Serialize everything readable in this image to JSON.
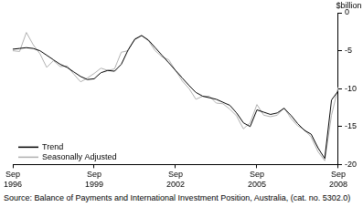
{
  "chart_data": {
    "type": "line",
    "y_label": "$billion",
    "source": "Source: Balance of Payments and International Investment Position, Australia, (cat. no. 5302.0)",
    "categories": [
      "Sep 1996",
      null,
      null,
      null,
      null,
      null,
      null,
      null,
      null,
      null,
      null,
      null,
      "Sep 1999",
      null,
      null,
      null,
      null,
      null,
      null,
      null,
      null,
      null,
      null,
      null,
      "Sep 2002",
      null,
      null,
      null,
      null,
      null,
      null,
      null,
      null,
      null,
      null,
      null,
      "Sep 2005",
      null,
      null,
      null,
      null,
      null,
      null,
      null,
      null,
      null,
      null,
      null,
      "Sep 2008"
    ],
    "series": [
      {
        "name": "Trend",
        "color": "#000000",
        "line_style": "solid",
        "values": [
          -4.8,
          -4.7,
          -4.6,
          -4.7,
          -5.0,
          -5.6,
          -6.2,
          -6.8,
          -7.2,
          -7.8,
          -8.4,
          -8.8,
          -8.7,
          -7.9,
          -7.6,
          -7.7,
          -6.8,
          -4.9,
          -3.5,
          -3.0,
          -3.6,
          -4.6,
          -5.6,
          -6.6,
          -7.6,
          -8.6,
          -9.6,
          -10.5,
          -11.0,
          -11.2,
          -11.4,
          -11.8,
          -12.2,
          -13.2,
          -14.5,
          -15.0,
          -12.8,
          -13.1,
          -13.4,
          -13.2,
          -12.6,
          -13.5,
          -14.6,
          -15.5,
          -16.0,
          -17.8,
          -19.2,
          -11.5,
          -10.3
        ]
      },
      {
        "name": "Seasonally Adjusted",
        "color": "#b0b0b0",
        "line_style": "solid",
        "values": [
          -5.0,
          -5.1,
          -2.6,
          -4.2,
          -5.4,
          -7.2,
          -6.3,
          -7.1,
          -7.0,
          -8.1,
          -9.1,
          -8.6,
          -8.0,
          -7.3,
          -7.6,
          -7.4,
          -5.2,
          -5.0,
          -3.4,
          -3.0,
          -3.7,
          -5.0,
          -5.8,
          -6.2,
          -7.6,
          -9.0,
          -10.0,
          -11.4,
          -11.0,
          -11.0,
          -11.9,
          -12.0,
          -12.7,
          -13.6,
          -15.3,
          -14.5,
          -12.1,
          -13.5,
          -13.7,
          -13.5,
          -12.5,
          -13.9,
          -14.9,
          -15.4,
          -16.4,
          -18.3,
          -19.5,
          -13.5,
          -9.8
        ]
      }
    ],
    "ylim": [
      -20,
      0
    ],
    "yticks": [
      0,
      -5,
      -10,
      -15,
      -20
    ],
    "grid": false,
    "legend": "lower left"
  }
}
